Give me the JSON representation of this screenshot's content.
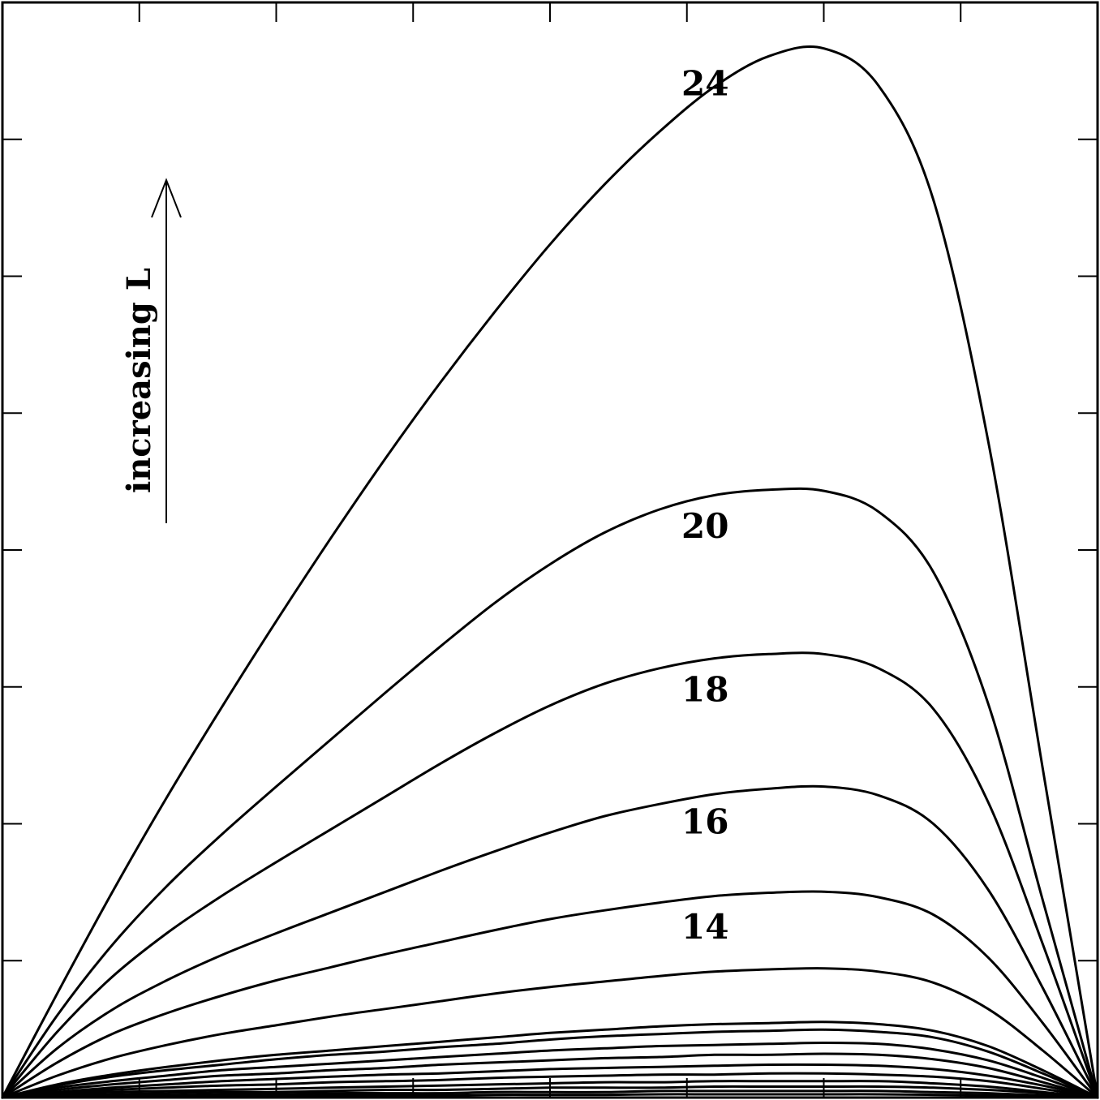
{
  "chart_data": {
    "type": "line",
    "title": "",
    "xlabel": "",
    "ylabel": "",
    "xlim": [
      0,
      1
    ],
    "ylim": [
      0,
      1
    ],
    "grid": false,
    "tick_labels_shown": false,
    "x_ticks": [
      0,
      0.125,
      0.25,
      0.375,
      0.5,
      0.625,
      0.75,
      0.875,
      1
    ],
    "y_ticks": [
      0,
      0.125,
      0.25,
      0.375,
      0.5,
      0.625,
      0.75,
      0.875,
      1
    ],
    "annotation": {
      "text": "increasing  L",
      "arrow_direction": "up"
    },
    "curve_shape": {
      "peak_x": 0.75,
      "x": [
        0,
        0.05,
        0.1,
        0.15,
        0.2,
        0.25,
        0.3,
        0.35,
        0.4,
        0.45,
        0.5,
        0.55,
        0.6,
        0.65,
        0.7,
        0.75,
        0.8,
        0.85,
        0.9,
        0.95,
        1
      ]
    },
    "series": [
      {
        "label": "24",
        "peak": 0.958,
        "values": [
          0,
          0.095,
          0.187,
          0.274,
          0.356,
          0.435,
          0.511,
          0.584,
          0.653,
          0.718,
          0.779,
          0.834,
          0.882,
          0.923,
          0.951,
          0.958,
          0.924,
          0.82,
          0.6,
          0.3,
          0
        ]
      },
      {
        "label": "20",
        "peak": 0.554,
        "values": [
          0,
          0.075,
          0.139,
          0.193,
          0.24,
          0.284,
          0.327,
          0.37,
          0.412,
          0.452,
          0.487,
          0.516,
          0.537,
          0.55,
          0.555,
          0.554,
          0.535,
          0.48,
          0.36,
          0.18,
          0
        ]
      },
      {
        "label": "18",
        "peak": 0.405,
        "values": [
          0,
          0.06,
          0.11,
          0.15,
          0.184,
          0.215,
          0.245,
          0.275,
          0.305,
          0.333,
          0.358,
          0.378,
          0.392,
          0.401,
          0.405,
          0.405,
          0.392,
          0.355,
          0.27,
          0.14,
          0
        ]
      },
      {
        "label": "16",
        "peak": 0.284,
        "values": [
          0,
          0.045,
          0.08,
          0.107,
          0.13,
          0.15,
          0.169,
          0.188,
          0.207,
          0.225,
          0.242,
          0.257,
          0.268,
          0.277,
          0.282,
          0.284,
          0.276,
          0.25,
          0.19,
          0.1,
          0
        ]
      },
      {
        "label": "14",
        "peak": 0.188,
        "values": [
          0,
          0.032,
          0.058,
          0.077,
          0.093,
          0.107,
          0.119,
          0.131,
          0.142,
          0.153,
          0.163,
          0.171,
          0.178,
          0.184,
          0.187,
          0.188,
          0.183,
          0.167,
          0.128,
          0.068,
          0
        ]
      },
      {
        "label": "",
        "peak": 0.118,
        "values": [
          0,
          0.02,
          0.036,
          0.048,
          0.058,
          0.066,
          0.074,
          0.081,
          0.088,
          0.095,
          0.101,
          0.106,
          0.111,
          0.115,
          0.117,
          0.118,
          0.115,
          0.105,
          0.081,
          0.043,
          0
        ]
      },
      {
        "label": "",
        "peak": 0.069,
        "values": [
          0,
          0.012,
          0.021,
          0.028,
          0.034,
          0.039,
          0.043,
          0.047,
          0.051,
          0.055,
          0.059,
          0.062,
          0.065,
          0.067,
          0.068,
          0.069,
          0.067,
          0.061,
          0.047,
          0.025,
          0
        ]
      },
      {
        "label": "",
        "peak": 0.062,
        "values": [
          0,
          0.011,
          0.019,
          0.025,
          0.03,
          0.035,
          0.039,
          0.042,
          0.046,
          0.049,
          0.053,
          0.056,
          0.058,
          0.06,
          0.061,
          0.062,
          0.06,
          0.055,
          0.042,
          0.022,
          0
        ]
      },
      {
        "label": "",
        "peak": 0.05,
        "values": [
          0,
          0.009,
          0.015,
          0.02,
          0.025,
          0.028,
          0.031,
          0.034,
          0.037,
          0.04,
          0.043,
          0.045,
          0.047,
          0.048,
          0.049,
          0.05,
          0.049,
          0.044,
          0.034,
          0.018,
          0
        ]
      },
      {
        "label": "",
        "peak": 0.04,
        "values": [
          0,
          0.007,
          0.012,
          0.016,
          0.02,
          0.022,
          0.025,
          0.027,
          0.03,
          0.032,
          0.034,
          0.036,
          0.037,
          0.039,
          0.039,
          0.04,
          0.039,
          0.035,
          0.027,
          0.014,
          0
        ]
      },
      {
        "label": "",
        "peak": 0.03,
        "values": [
          0,
          0.005,
          0.009,
          0.012,
          0.015,
          0.017,
          0.019,
          0.021,
          0.022,
          0.024,
          0.026,
          0.027,
          0.028,
          0.029,
          0.03,
          0.03,
          0.029,
          0.026,
          0.02,
          0.011,
          0
        ]
      },
      {
        "label": "",
        "peak": 0.022,
        "values": [
          0,
          0.004,
          0.007,
          0.009,
          0.011,
          0.012,
          0.014,
          0.015,
          0.016,
          0.018,
          0.019,
          0.02,
          0.021,
          0.021,
          0.022,
          0.022,
          0.021,
          0.019,
          0.015,
          0.008,
          0
        ]
      },
      {
        "label": "",
        "peak": 0.015,
        "values": [
          0,
          0.003,
          0.005,
          0.006,
          0.007,
          0.008,
          0.009,
          0.01,
          0.011,
          0.012,
          0.013,
          0.014,
          0.014,
          0.015,
          0.015,
          0.015,
          0.015,
          0.013,
          0.01,
          0.005,
          0
        ]
      },
      {
        "label": "",
        "peak": 0.01,
        "values": [
          0,
          0.002,
          0.003,
          0.004,
          0.005,
          0.005,
          0.006,
          0.007,
          0.007,
          0.008,
          0.009,
          0.009,
          0.009,
          0.01,
          0.01,
          0.01,
          0.01,
          0.009,
          0.007,
          0.004,
          0
        ]
      },
      {
        "label": "",
        "peak": 0.006,
        "values": [
          0,
          0.001,
          0.002,
          0.002,
          0.003,
          0.003,
          0.004,
          0.004,
          0.004,
          0.005,
          0.005,
          0.005,
          0.006,
          0.006,
          0.006,
          0.006,
          0.006,
          0.005,
          0.004,
          0.002,
          0
        ]
      },
      {
        "label": "",
        "peak": 0.003,
        "values": [
          0,
          0.0005,
          0.001,
          0.001,
          0.0015,
          0.0015,
          0.002,
          0.002,
          0.002,
          0.0025,
          0.0025,
          0.0025,
          0.003,
          0.003,
          0.003,
          0.003,
          0.003,
          0.0025,
          0.002,
          0.001,
          0
        ]
      }
    ]
  }
}
